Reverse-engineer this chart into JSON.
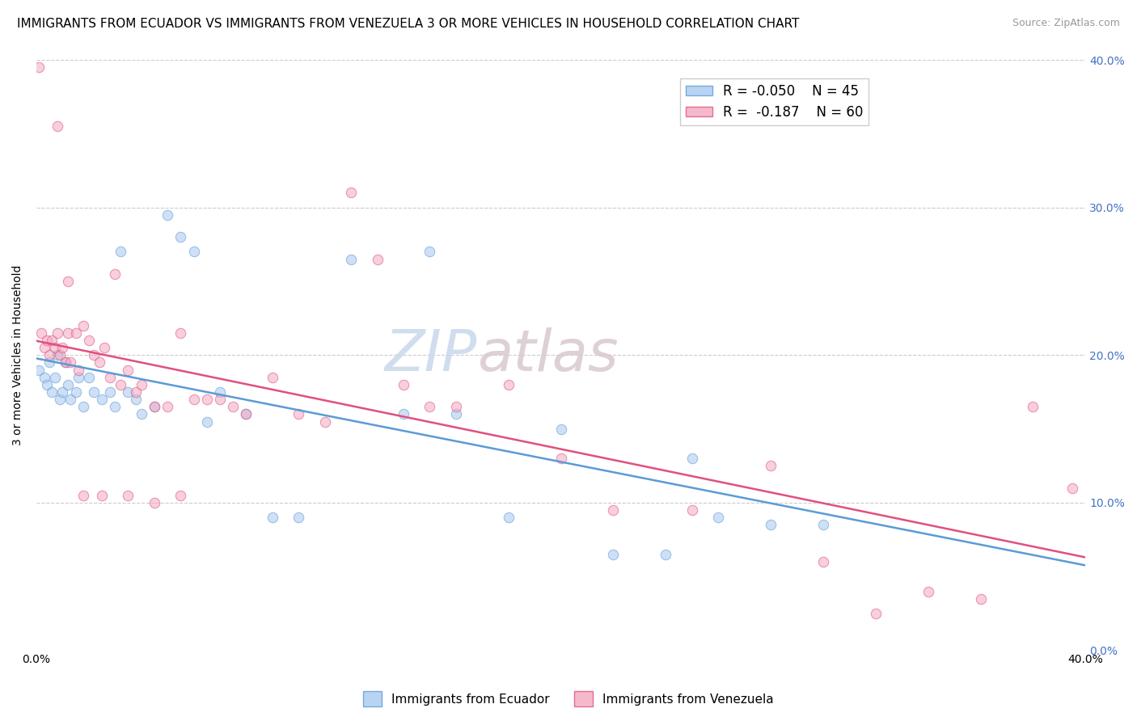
{
  "title": "IMMIGRANTS FROM ECUADOR VS IMMIGRANTS FROM VENEZUELA 3 OR MORE VEHICLES IN HOUSEHOLD CORRELATION CHART",
  "source": "Source: ZipAtlas.com",
  "ylabel": "3 or more Vehicles in Household",
  "right_ytick_labels": [
    "0.0%",
    "10.0%",
    "20.0%",
    "30.0%",
    "40.0%"
  ],
  "right_ytick_vals": [
    0.0,
    0.1,
    0.2,
    0.3,
    0.4
  ],
  "xlim": [
    0.0,
    0.4
  ],
  "ylim": [
    0.0,
    0.4
  ],
  "xtick_vals": [
    0.0,
    0.1,
    0.2,
    0.3,
    0.4
  ],
  "legend_r_ecuador": "R = -0.050",
  "legend_n_ecuador": "N = 45",
  "legend_r_venezuela": "R =  -0.187",
  "legend_n_venezuela": "N = 60",
  "ecuador_color": "#A8C8F0",
  "venezuela_color": "#F4A8C0",
  "ecuador_edge_color": "#5B9BD5",
  "venezuela_edge_color": "#E05080",
  "ecuador_line_color": "#5B9BD5",
  "venezuela_line_color": "#E05080",
  "watermark_zip": "ZIP",
  "watermark_atlas": "atlas",
  "grid_color": "#CCCCCC",
  "background_color": "#FFFFFF",
  "title_fontsize": 11,
  "source_fontsize": 9,
  "axis_label_fontsize": 10,
  "tick_fontsize": 10,
  "legend_fontsize": 12,
  "watermark_fontsize": 52,
  "marker_size": 80,
  "marker_alpha": 0.55,
  "line_width": 1.8,
  "ecuador_x": [
    0.001,
    0.003,
    0.004,
    0.005,
    0.006,
    0.007,
    0.008,
    0.009,
    0.01,
    0.011,
    0.012,
    0.013,
    0.015,
    0.016,
    0.018,
    0.02,
    0.022,
    0.025,
    0.028,
    0.03,
    0.032,
    0.035,
    0.038,
    0.04,
    0.045,
    0.05,
    0.055,
    0.06,
    0.065,
    0.07,
    0.08,
    0.09,
    0.1,
    0.12,
    0.14,
    0.15,
    0.16,
    0.18,
    0.2,
    0.22,
    0.24,
    0.25,
    0.26,
    0.28,
    0.3
  ],
  "ecuador_y": [
    0.19,
    0.185,
    0.18,
    0.195,
    0.175,
    0.185,
    0.2,
    0.17,
    0.175,
    0.195,
    0.18,
    0.17,
    0.175,
    0.185,
    0.165,
    0.185,
    0.175,
    0.17,
    0.175,
    0.165,
    0.27,
    0.175,
    0.17,
    0.16,
    0.165,
    0.295,
    0.28,
    0.27,
    0.155,
    0.175,
    0.16,
    0.09,
    0.09,
    0.265,
    0.16,
    0.27,
    0.16,
    0.09,
    0.15,
    0.065,
    0.065,
    0.13,
    0.09,
    0.085,
    0.085
  ],
  "venezuela_x": [
    0.001,
    0.002,
    0.003,
    0.004,
    0.005,
    0.006,
    0.007,
    0.008,
    0.009,
    0.01,
    0.011,
    0.012,
    0.013,
    0.015,
    0.016,
    0.018,
    0.02,
    0.022,
    0.024,
    0.026,
    0.028,
    0.03,
    0.032,
    0.035,
    0.038,
    0.04,
    0.045,
    0.05,
    0.055,
    0.06,
    0.065,
    0.07,
    0.075,
    0.08,
    0.09,
    0.1,
    0.11,
    0.12,
    0.13,
    0.14,
    0.15,
    0.16,
    0.18,
    0.2,
    0.22,
    0.25,
    0.28,
    0.3,
    0.32,
    0.34,
    0.36,
    0.38,
    0.395,
    0.008,
    0.012,
    0.018,
    0.025,
    0.035,
    0.045,
    0.055
  ],
  "venezuela_y": [
    0.395,
    0.215,
    0.205,
    0.21,
    0.2,
    0.21,
    0.205,
    0.215,
    0.2,
    0.205,
    0.195,
    0.215,
    0.195,
    0.215,
    0.19,
    0.22,
    0.21,
    0.2,
    0.195,
    0.205,
    0.185,
    0.255,
    0.18,
    0.19,
    0.175,
    0.18,
    0.165,
    0.165,
    0.215,
    0.17,
    0.17,
    0.17,
    0.165,
    0.16,
    0.185,
    0.16,
    0.155,
    0.31,
    0.265,
    0.18,
    0.165,
    0.165,
    0.18,
    0.13,
    0.095,
    0.095,
    0.125,
    0.06,
    0.025,
    0.04,
    0.035,
    0.165,
    0.11,
    0.355,
    0.25,
    0.105,
    0.105,
    0.105,
    0.1,
    0.105
  ]
}
